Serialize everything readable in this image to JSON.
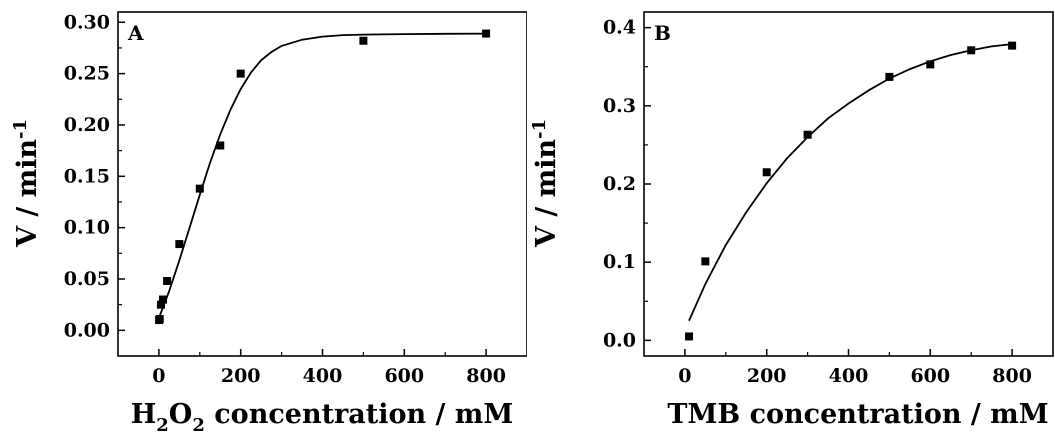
{
  "chart_data": [
    {
      "type": "scatter",
      "panel_label": "A",
      "title": "",
      "xlabel_parts": [
        "H",
        "2",
        "O",
        "2",
        " concentration / mM"
      ],
      "ylabel_parts": [
        "V / min",
        "-1"
      ],
      "xlim": [
        -100,
        900
      ],
      "ylim": [
        -0.025,
        0.31
      ],
      "xticks": [
        0,
        200,
        400,
        600,
        800
      ],
      "xtick_labels": [
        "0",
        "200",
        "400",
        "600",
        "800"
      ],
      "yticks": [
        0.0,
        0.05,
        0.1,
        0.15,
        0.2,
        0.25,
        0.3
      ],
      "ytick_labels": [
        "0.00",
        "0.05",
        "0.10",
        "0.15",
        "0.20",
        "0.25",
        "0.30"
      ],
      "grid": false,
      "series": [
        {
          "points": [
            {
              "x": 0.5,
              "y": 0.01
            },
            {
              "x": 2,
              "y": 0.011
            },
            {
              "x": 5,
              "y": 0.025
            },
            {
              "x": 10,
              "y": 0.03
            },
            {
              "x": 20,
              "y": 0.048
            },
            {
              "x": 50,
              "y": 0.084
            },
            {
              "x": 100,
              "y": 0.138
            },
            {
              "x": 150,
              "y": 0.18
            },
            {
              "x": 200,
              "y": 0.25
            },
            {
              "x": 500,
              "y": 0.282
            },
            {
              "x": 800,
              "y": 0.289
            }
          ],
          "fit_curve": [
            {
              "x": 0,
              "y": 0.012
            },
            {
              "x": 25,
              "y": 0.038
            },
            {
              "x": 50,
              "y": 0.068
            },
            {
              "x": 75,
              "y": 0.1
            },
            {
              "x": 100,
              "y": 0.132
            },
            {
              "x": 125,
              "y": 0.163
            },
            {
              "x": 150,
              "y": 0.191
            },
            {
              "x": 175,
              "y": 0.215
            },
            {
              "x": 200,
              "y": 0.235
            },
            {
              "x": 225,
              "y": 0.251
            },
            {
              "x": 250,
              "y": 0.263
            },
            {
              "x": 275,
              "y": 0.271
            },
            {
              "x": 300,
              "y": 0.277
            },
            {
              "x": 350,
              "y": 0.283
            },
            {
              "x": 400,
              "y": 0.286
            },
            {
              "x": 450,
              "y": 0.2875
            },
            {
              "x": 500,
              "y": 0.288
            },
            {
              "x": 600,
              "y": 0.2885
            },
            {
              "x": 700,
              "y": 0.2888
            },
            {
              "x": 800,
              "y": 0.289
            }
          ]
        }
      ]
    },
    {
      "type": "scatter",
      "panel_label": "B",
      "title": "",
      "xlabel_parts": [
        "TMB concentration / mM"
      ],
      "ylabel_parts": [
        "V / min",
        "-1"
      ],
      "xlim": [
        -100,
        900
      ],
      "ylim": [
        -0.02,
        0.42
      ],
      "xticks": [
        0,
        200,
        400,
        600,
        800
      ],
      "xtick_labels": [
        "0",
        "200",
        "400",
        "600",
        "800"
      ],
      "yticks": [
        0.0,
        0.1,
        0.2,
        0.3,
        0.4
      ],
      "ytick_labels": [
        "0.0",
        "0.1",
        "0.2",
        "0.3",
        "0.4"
      ],
      "grid": false,
      "series": [
        {
          "points": [
            {
              "x": 10,
              "y": 0.005
            },
            {
              "x": 50,
              "y": 0.101
            },
            {
              "x": 200,
              "y": 0.215
            },
            {
              "x": 300,
              "y": 0.263
            },
            {
              "x": 500,
              "y": 0.337
            },
            {
              "x": 600,
              "y": 0.353
            },
            {
              "x": 700,
              "y": 0.371
            },
            {
              "x": 800,
              "y": 0.377
            }
          ],
          "fit_curve": [
            {
              "x": 10,
              "y": 0.025
            },
            {
              "x": 50,
              "y": 0.072
            },
            {
              "x": 100,
              "y": 0.122
            },
            {
              "x": 150,
              "y": 0.164
            },
            {
              "x": 200,
              "y": 0.201
            },
            {
              "x": 250,
              "y": 0.233
            },
            {
              "x": 300,
              "y": 0.26
            },
            {
              "x": 350,
              "y": 0.284
            },
            {
              "x": 400,
              "y": 0.303
            },
            {
              "x": 450,
              "y": 0.32
            },
            {
              "x": 500,
              "y": 0.335
            },
            {
              "x": 550,
              "y": 0.347
            },
            {
              "x": 600,
              "y": 0.357
            },
            {
              "x": 650,
              "y": 0.365
            },
            {
              "x": 700,
              "y": 0.371
            },
            {
              "x": 750,
              "y": 0.376
            },
            {
              "x": 800,
              "y": 0.379
            }
          ]
        }
      ]
    }
  ]
}
